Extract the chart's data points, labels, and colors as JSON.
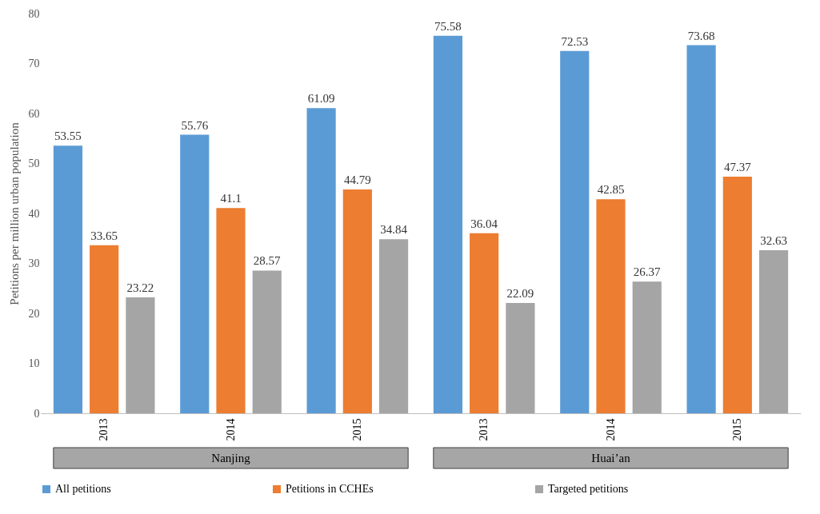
{
  "chart_data": {
    "type": "bar",
    "ylabel": "Petitions per million  urban population",
    "categories": [
      "2013",
      "2014",
      "2015",
      "2013",
      "2014",
      "2015"
    ],
    "annotations": [
      "Nanjing",
      "Huai’an"
    ],
    "series": [
      {
        "name": "All petitions",
        "color": "#5b9bd5",
        "values": [
          53.55,
          55.76,
          61.09,
          75.58,
          72.53,
          73.68
        ]
      },
      {
        "name": "Petitions in CCHEs",
        "color": "#ed7d31",
        "values": [
          33.65,
          41.1,
          44.79,
          36.04,
          42.85,
          47.37
        ]
      },
      {
        "name": "Targeted petitions",
        "color": "#a5a5a5",
        "values": [
          23.22,
          28.57,
          34.84,
          22.09,
          26.37,
          32.63
        ]
      }
    ],
    "ylim": [
      0,
      80
    ],
    "yticks": [
      0,
      10,
      20,
      30,
      40,
      50,
      60,
      70,
      80
    ],
    "grid": false,
    "legend": "bottom",
    "data_labels": true
  }
}
